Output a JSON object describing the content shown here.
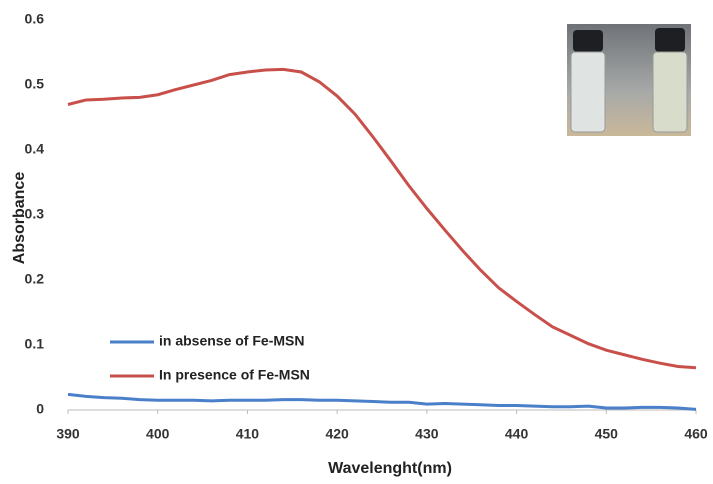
{
  "chart_data": {
    "type": "line",
    "x_label": "Wavelenght(nm)",
    "y_label": "Absorbance",
    "x": [
      390,
      392,
      394,
      396,
      398,
      400,
      402,
      404,
      406,
      408,
      410,
      412,
      414,
      416,
      418,
      420,
      422,
      424,
      426,
      428,
      430,
      432,
      434,
      436,
      438,
      440,
      442,
      444,
      446,
      448,
      450,
      452,
      454,
      456,
      458,
      460
    ],
    "series": [
      {
        "name": "in absense of Fe-MSN",
        "color": "#4a7fc9",
        "values": [
          0.024,
          0.021,
          0.019,
          0.018,
          0.016,
          0.015,
          0.015,
          0.015,
          0.014,
          0.015,
          0.015,
          0.015,
          0.016,
          0.016,
          0.015,
          0.015,
          0.014,
          0.013,
          0.012,
          0.012,
          0.009,
          0.01,
          0.009,
          0.008,
          0.007,
          0.007,
          0.006,
          0.005,
          0.005,
          0.006,
          0.003,
          0.003,
          0.004,
          0.004,
          0.003,
          0.001
        ]
      },
      {
        "name": "In presence of Fe-MSN",
        "color": "#c9504a",
        "values": [
          0.47,
          0.477,
          0.478,
          0.48,
          0.481,
          0.485,
          0.493,
          0.5,
          0.507,
          0.516,
          0.52,
          0.523,
          0.524,
          0.52,
          0.505,
          0.483,
          0.455,
          0.42,
          0.383,
          0.345,
          0.31,
          0.277,
          0.245,
          0.215,
          0.188,
          0.167,
          0.147,
          0.128,
          0.115,
          0.102,
          0.092,
          0.085,
          0.078,
          0.072,
          0.067,
          0.065
        ]
      }
    ],
    "xlim": [
      390,
      460
    ],
    "xticks": [
      390,
      400,
      410,
      420,
      430,
      440,
      450,
      460
    ],
    "ylim": [
      0,
      0.6
    ],
    "yticks": [
      0,
      0.1,
      0.2,
      0.3,
      0.4,
      0.5,
      0.6
    ],
    "legend": "lower left"
  }
}
